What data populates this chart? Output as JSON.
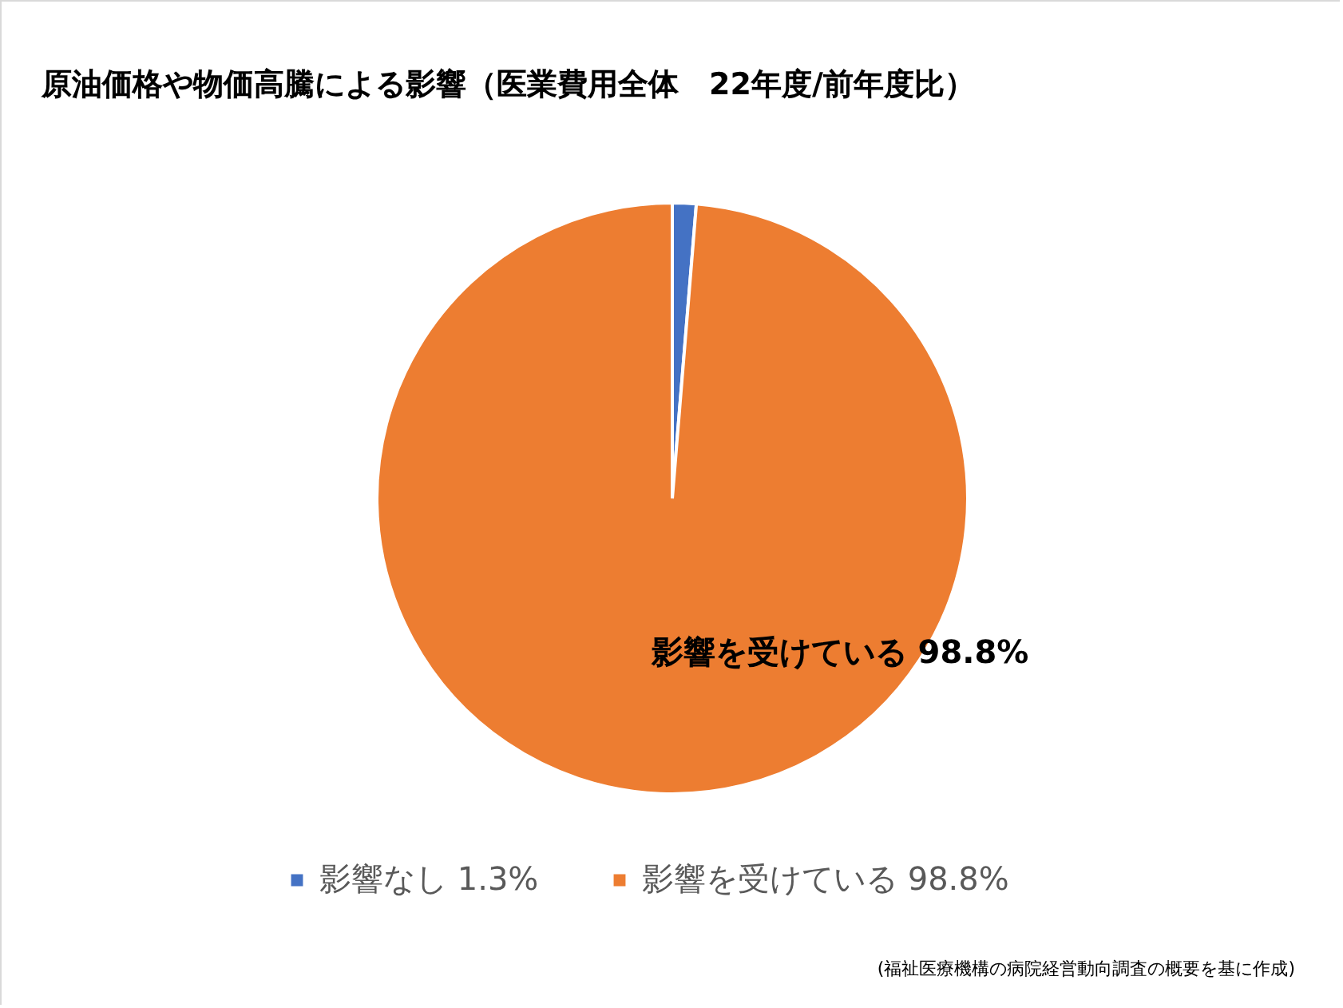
{
  "chart_data": {
    "type": "pie",
    "title": "原油価格や物価高騰による影響（医業費用全体　22年度/前年度比）",
    "categories": [
      "影響なし",
      "影響を受けている"
    ],
    "values": [
      1.3,
      98.8
    ],
    "colors": [
      "#4472c4",
      "#ed7d31"
    ],
    "value_labels": [
      "1.3%",
      "98.8%"
    ],
    "legend": "bottom",
    "annotations": [
      "影響を受けている 98.8%",
      "(福祉医療機構の病院経営動向調査の概要を基に作成)"
    ]
  }
}
